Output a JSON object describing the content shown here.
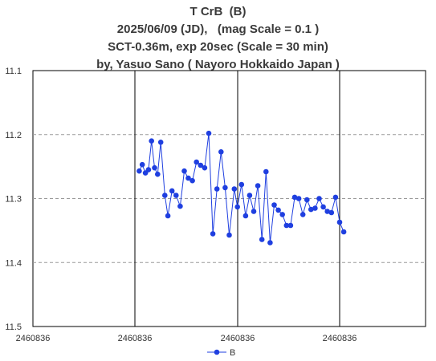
{
  "chart_data": {
    "type": "line",
    "title_lines": [
      "T CrB  (B)",
      "2025/06/09 (JD),   (mag Scale = 0.1 )",
      "SCT-0.36m, exp 20sec (Scale = 30 min)",
      "by, Yasuo Sano ( Nayoro Hokkaido Japan )"
    ],
    "xlabel": "",
    "ylabel": "",
    "x_tick_labels": [
      "2460836",
      "2460836",
      "2460836",
      "2460836"
    ],
    "y_tick_labels": [
      "11.1",
      "11.2",
      "11.3",
      "11.4",
      "11.5"
    ],
    "ylim": [
      11.1,
      11.5
    ],
    "y_inverted": true,
    "grid": "horizontal dashed; vertical solid at x ticks",
    "legend_position": "bottom-center",
    "series": [
      {
        "name": "B",
        "color": "#1f3fe0",
        "x": [
          1.04,
          1.07,
          1.1,
          1.13,
          1.16,
          1.19,
          1.22,
          1.25,
          1.29,
          1.32,
          1.36,
          1.4,
          1.44,
          1.48,
          1.52,
          1.56,
          1.6,
          1.64,
          1.68,
          1.72,
          1.76,
          1.8,
          1.84,
          1.88,
          1.92,
          1.97,
          2.0,
          2.04,
          2.08,
          2.12,
          2.16,
          2.2,
          2.24,
          2.28,
          2.32,
          2.36,
          2.4,
          2.44,
          2.48,
          2.52,
          2.56,
          2.6,
          2.64,
          2.68,
          2.72,
          2.76,
          2.8,
          2.84,
          2.88,
          2.92,
          2.96,
          3.0,
          3.04
        ],
        "y": [
          11.257,
          11.247,
          11.26,
          11.255,
          11.21,
          11.252,
          11.262,
          11.212,
          11.295,
          11.327,
          11.288,
          11.295,
          11.312,
          11.257,
          11.268,
          11.272,
          11.243,
          11.248,
          11.252,
          11.198,
          11.355,
          11.285,
          11.227,
          11.283,
          11.357,
          11.285,
          11.313,
          11.278,
          11.327,
          11.295,
          11.32,
          11.28,
          11.364,
          11.258,
          11.369,
          11.31,
          11.318,
          11.325,
          11.342,
          11.342,
          11.298,
          11.3,
          11.325,
          11.302,
          11.317,
          11.315,
          11.3,
          11.313,
          11.32,
          11.322,
          11.298,
          11.337,
          11.352
        ]
      }
    ]
  }
}
